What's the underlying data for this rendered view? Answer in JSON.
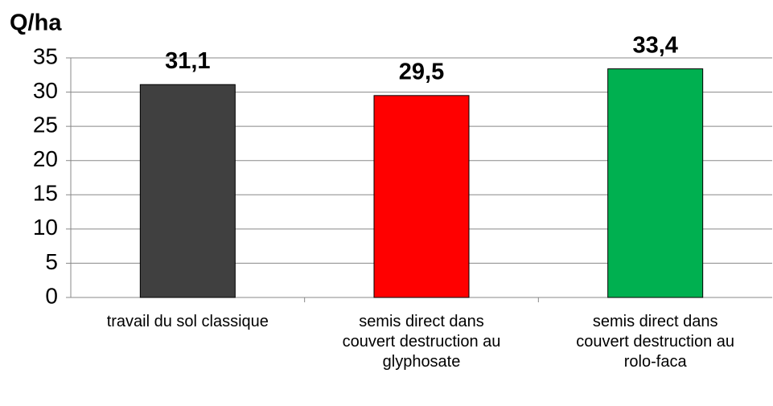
{
  "chart_data": {
    "type": "bar",
    "y_label": "Q/ha",
    "categories": [
      "travail du sol classique",
      "semis direct dans couvert destruction au glyphosate",
      "semis direct dans couvert destruction au rolo-faca"
    ],
    "values": [
      31.1,
      29.5,
      33.4
    ],
    "value_labels": [
      "31,1",
      "29,5",
      "33,4"
    ],
    "colors": [
      "#404040",
      "#ff0000",
      "#00b050"
    ],
    "ylim": [
      0,
      35
    ],
    "yticks": [
      0,
      5,
      10,
      15,
      20,
      25,
      30,
      35
    ],
    "grid": true
  }
}
